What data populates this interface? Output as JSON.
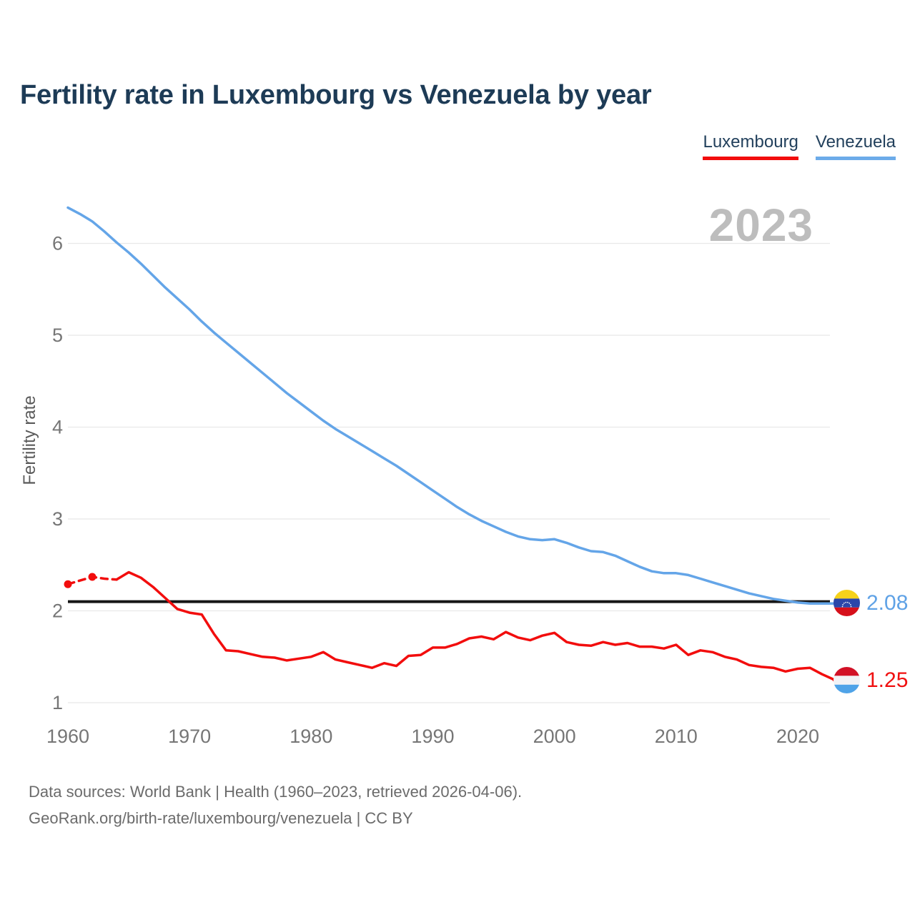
{
  "page": {
    "title": "Fertility rate in Luxembourg vs Venezuela by year",
    "watermark_year": "2023",
    "footer_line1": "Data sources: World Bank | Health (1960–2023, retrieved 2026-04-06).",
    "footer_line2": "GeoRank.org/birth-rate/luxembourg/venezuela | CC BY"
  },
  "legend": {
    "items": [
      {
        "label": "Luxembourg",
        "color": "#f20d0d"
      },
      {
        "label": "Venezuela",
        "color": "#6cabe9"
      }
    ]
  },
  "chart_data": {
    "type": "line",
    "title": "Fertility rate in Luxembourg vs Venezuela by year",
    "xlabel": "",
    "ylabel": "Fertility rate",
    "ylim": [
      1,
      6.5
    ],
    "grid": true,
    "legend_position": "top-right",
    "y_ticks": [
      1,
      2,
      3,
      4,
      5,
      6
    ],
    "x_ticks": [
      1960,
      1970,
      1980,
      1990,
      2000,
      2010,
      2020
    ],
    "baseline_value": 2.1,
    "years": [
      1960,
      1961,
      1962,
      1963,
      1964,
      1965,
      1966,
      1967,
      1968,
      1969,
      1970,
      1971,
      1972,
      1973,
      1974,
      1975,
      1976,
      1977,
      1978,
      1979,
      1980,
      1981,
      1982,
      1983,
      1984,
      1985,
      1986,
      1987,
      1988,
      1989,
      1990,
      1991,
      1992,
      1993,
      1994,
      1995,
      1996,
      1997,
      1998,
      1999,
      2000,
      2001,
      2002,
      2003,
      2004,
      2005,
      2006,
      2007,
      2008,
      2009,
      2010,
      2011,
      2012,
      2013,
      2014,
      2015,
      2016,
      2017,
      2018,
      2019,
      2020,
      2021,
      2022,
      2023
    ],
    "series": [
      {
        "name": "Venezuela",
        "color": "#64a5e8",
        "values": [
          6.39,
          6.32,
          6.24,
          6.13,
          6.01,
          5.9,
          5.78,
          5.65,
          5.52,
          5.4,
          5.28,
          5.15,
          5.03,
          4.92,
          4.81,
          4.7,
          4.59,
          4.48,
          4.37,
          4.27,
          4.17,
          4.07,
          3.98,
          3.9,
          3.82,
          3.74,
          3.66,
          3.58,
          3.49,
          3.4,
          3.31,
          3.22,
          3.13,
          3.05,
          2.98,
          2.92,
          2.86,
          2.81,
          2.78,
          2.77,
          2.78,
          2.74,
          2.69,
          2.65,
          2.64,
          2.6,
          2.54,
          2.48,
          2.43,
          2.41,
          2.41,
          2.39,
          2.35,
          2.31,
          2.27,
          2.23,
          2.19,
          2.16,
          2.13,
          2.11,
          2.09,
          2.08,
          2.08,
          2.08
        ]
      },
      {
        "name": "Luxembourg",
        "color": "#f20d0d",
        "dashed_through_year": 1964,
        "marker_years": [
          1960,
          1962
        ],
        "values": [
          2.29,
          2.33,
          2.37,
          2.35,
          2.34,
          2.42,
          2.36,
          2.26,
          2.14,
          2.02,
          1.98,
          1.96,
          1.75,
          1.57,
          1.56,
          1.53,
          1.5,
          1.49,
          1.46,
          1.48,
          1.5,
          1.55,
          1.47,
          1.44,
          1.41,
          1.38,
          1.43,
          1.4,
          1.51,
          1.52,
          1.6,
          1.6,
          1.64,
          1.7,
          1.72,
          1.69,
          1.77,
          1.71,
          1.68,
          1.73,
          1.76,
          1.66,
          1.63,
          1.62,
          1.66,
          1.63,
          1.65,
          1.61,
          1.61,
          1.59,
          1.63,
          1.52,
          1.57,
          1.55,
          1.5,
          1.47,
          1.41,
          1.39,
          1.38,
          1.34,
          1.37,
          1.38,
          1.31,
          1.25
        ]
      }
    ],
    "end_labels": [
      {
        "series": "Venezuela",
        "value": "2.08",
        "color": "#5fa2e6",
        "flag": "venezuela-flag"
      },
      {
        "series": "Luxembourg",
        "value": "1.25",
        "color": "#f01010",
        "flag": "luxembourg-flag"
      }
    ]
  }
}
